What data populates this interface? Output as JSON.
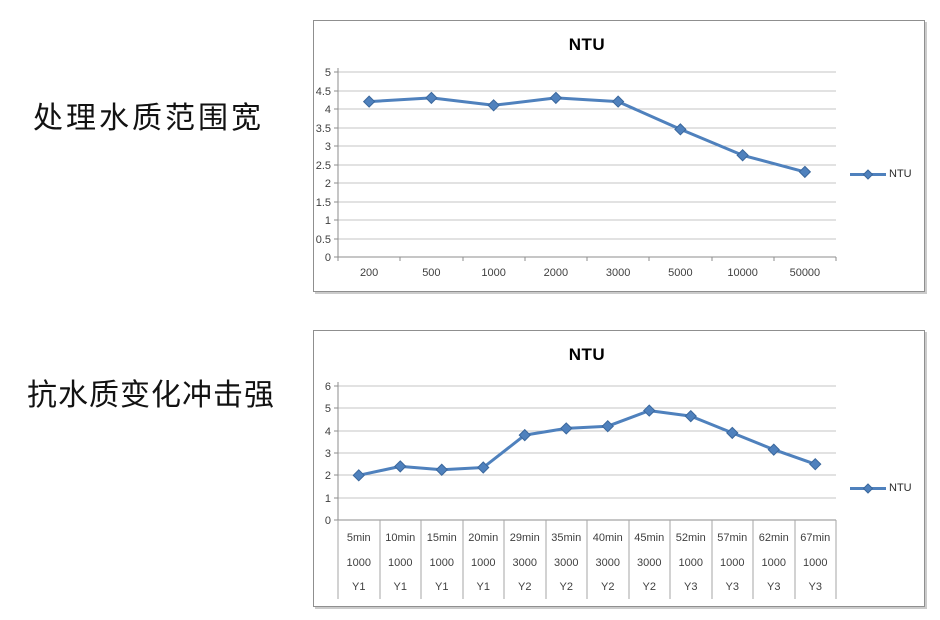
{
  "captions": {
    "top": "处理水质范围宽",
    "bottom": "抗水质变化冲击强"
  },
  "colors": {
    "series": "#4F81BD",
    "marker_stroke": "#3A679C",
    "grid": "#C6C6C6",
    "axis": "#8E8E8E",
    "table_line": "#A6A6A6",
    "label": "#3F3F3F",
    "title": "#000000"
  },
  "chart_data": [
    {
      "type": "line",
      "title": "NTU",
      "legend": "NTU",
      "legend_position": "right",
      "marker": "diamond",
      "grid": true,
      "xlabel": "",
      "ylabel": "",
      "categories": [
        "200",
        "500",
        "1000",
        "2000",
        "3000",
        "5000",
        "10000",
        "50000"
      ],
      "values": [
        4.2,
        4.3,
        4.1,
        4.3,
        4.2,
        3.45,
        2.75,
        2.3
      ],
      "ylim": [
        0,
        5
      ],
      "ytick_step": 0.5,
      "yticks": [
        "5",
        "4.5",
        "4",
        "3.5",
        "3",
        "2.5",
        "2",
        "1.5",
        "1",
        "0.5",
        "0"
      ]
    },
    {
      "type": "line",
      "title": "NTU",
      "legend": "NTU",
      "legend_position": "right",
      "marker": "diamond",
      "grid": true,
      "xlabel": "",
      "ylabel": "",
      "categories": [
        "5min",
        "10min",
        "15min",
        "20min",
        "29min",
        "35min",
        "40min",
        "45min",
        "52min",
        "57min",
        "62min",
        "67min"
      ],
      "category_rows": [
        [
          "5min",
          "10min",
          "15min",
          "20min",
          "29min",
          "35min",
          "40min",
          "45min",
          "52min",
          "57min",
          "62min",
          "67min"
        ],
        [
          "1000",
          "1000",
          "1000",
          "1000",
          "3000",
          "3000",
          "3000",
          "3000",
          "1000",
          "1000",
          "1000",
          "1000"
        ],
        [
          "Y1",
          "Y1",
          "Y1",
          "Y1",
          "Y2",
          "Y2",
          "Y2",
          "Y2",
          "Y3",
          "Y3",
          "Y3",
          "Y3"
        ]
      ],
      "values": [
        2.0,
        2.4,
        2.25,
        2.35,
        3.8,
        4.1,
        4.2,
        4.9,
        4.65,
        3.9,
        3.15,
        2.5
      ],
      "ylim": [
        0,
        6
      ],
      "ytick_step": 1,
      "yticks": [
        "6",
        "5",
        "4",
        "3",
        "2",
        "1",
        "0"
      ]
    }
  ]
}
